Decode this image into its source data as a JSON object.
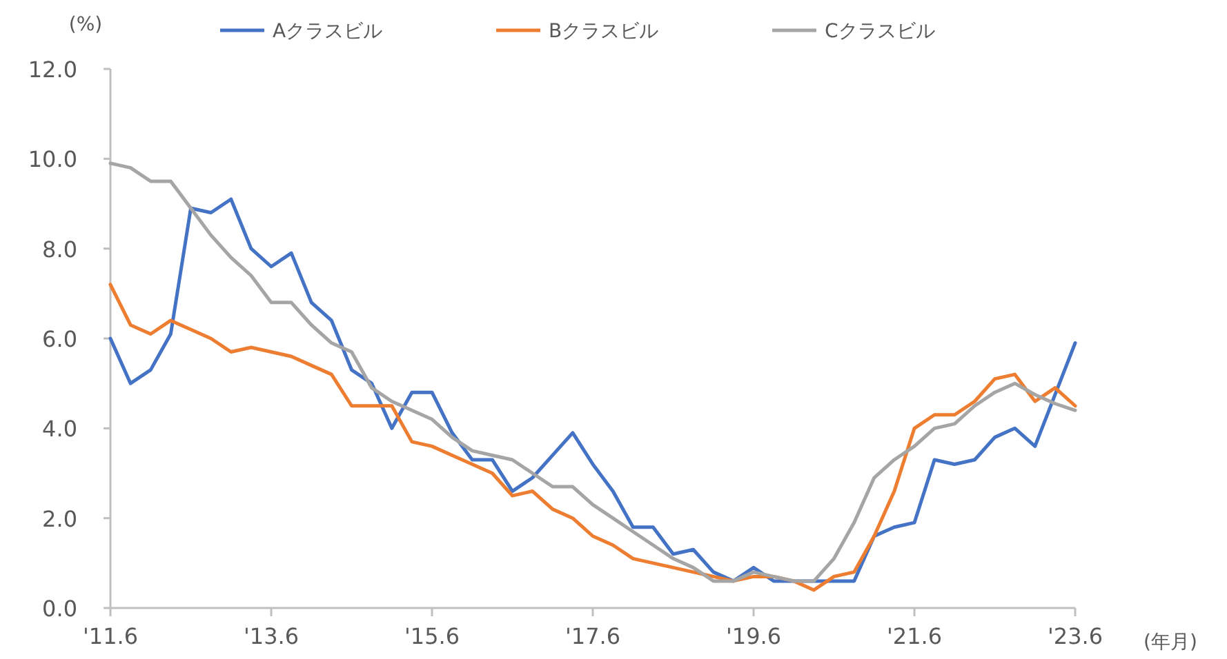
{
  "chart_data": {
    "type": "line",
    "ylabel": "(%)",
    "xlabel": "(年月)",
    "legend": "top",
    "grid": false,
    "marker": "none",
    "line_style": "solid",
    "categories": [
      "'11.6",
      null,
      null,
      null,
      null,
      null,
      null,
      null,
      "'13.6",
      null,
      null,
      null,
      null,
      null,
      null,
      null,
      "'15.6",
      null,
      null,
      null,
      null,
      null,
      null,
      null,
      "'17.6",
      null,
      null,
      null,
      null,
      null,
      null,
      null,
      "'19.6",
      null,
      null,
      null,
      null,
      null,
      null,
      null,
      "'21.6",
      null,
      null,
      null,
      null,
      null,
      null,
      null,
      "'23.6"
    ],
    "ylim": [
      0,
      12
    ],
    "yticks": [
      {
        "value": 0,
        "label": "0.0"
      },
      {
        "value": 2,
        "label": "2.0"
      },
      {
        "value": 4,
        "label": "4.0"
      },
      {
        "value": 6,
        "label": "6.0"
      },
      {
        "value": 8,
        "label": "8.0"
      },
      {
        "value": 10,
        "label": "10.0"
      },
      {
        "value": 12,
        "label": "12.0"
      }
    ],
    "series": [
      {
        "name": "Aクラスビル",
        "color": "#4472c4",
        "values": [
          6.0,
          5.0,
          5.3,
          6.1,
          8.9,
          8.8,
          9.1,
          8.0,
          7.6,
          7.9,
          6.8,
          6.4,
          5.3,
          5.0,
          4.0,
          4.8,
          4.8,
          3.9,
          3.3,
          3.3,
          2.6,
          2.9,
          3.4,
          3.9,
          3.2,
          2.6,
          1.8,
          1.8,
          1.2,
          1.3,
          0.8,
          0.6,
          0.9,
          0.6,
          0.6,
          0.6,
          0.6,
          0.6,
          1.6,
          1.8,
          1.9,
          3.3,
          3.2,
          3.3,
          3.8,
          4.0,
          3.6,
          4.75,
          5.9
        ]
      },
      {
        "name": "Bクラスビル",
        "color": "#ed7d31",
        "values": [
          7.2,
          6.3,
          6.1,
          6.4,
          6.2,
          6.0,
          5.7,
          5.8,
          5.7,
          5.6,
          5.4,
          5.2,
          4.5,
          4.5,
          4.5,
          3.7,
          3.6,
          3.4,
          3.2,
          3.0,
          2.5,
          2.6,
          2.2,
          2.0,
          1.6,
          1.4,
          1.1,
          1.0,
          0.9,
          0.8,
          0.7,
          0.6,
          0.7,
          0.7,
          0.6,
          0.4,
          0.7,
          0.8,
          1.6,
          2.6,
          4.0,
          4.3,
          4.3,
          4.6,
          5.1,
          5.2,
          4.6,
          4.9,
          4.5
        ]
      },
      {
        "name": "Cクラスビル",
        "color": "#a5a5a5",
        "values": [
          9.9,
          9.8,
          9.5,
          9.5,
          8.9,
          8.3,
          7.8,
          7.4,
          6.8,
          6.8,
          6.3,
          5.9,
          5.7,
          4.9,
          4.6,
          4.4,
          4.2,
          3.8,
          3.5,
          3.4,
          3.3,
          3.0,
          2.7,
          2.7,
          2.3,
          2.0,
          1.7,
          1.4,
          1.1,
          0.9,
          0.6,
          0.6,
          0.8,
          0.7,
          0.6,
          0.6,
          1.1,
          1.9,
          2.9,
          3.3,
          3.6,
          4.0,
          4.1,
          4.5,
          4.8,
          5.0,
          4.75,
          4.55,
          4.4
        ]
      }
    ]
  }
}
